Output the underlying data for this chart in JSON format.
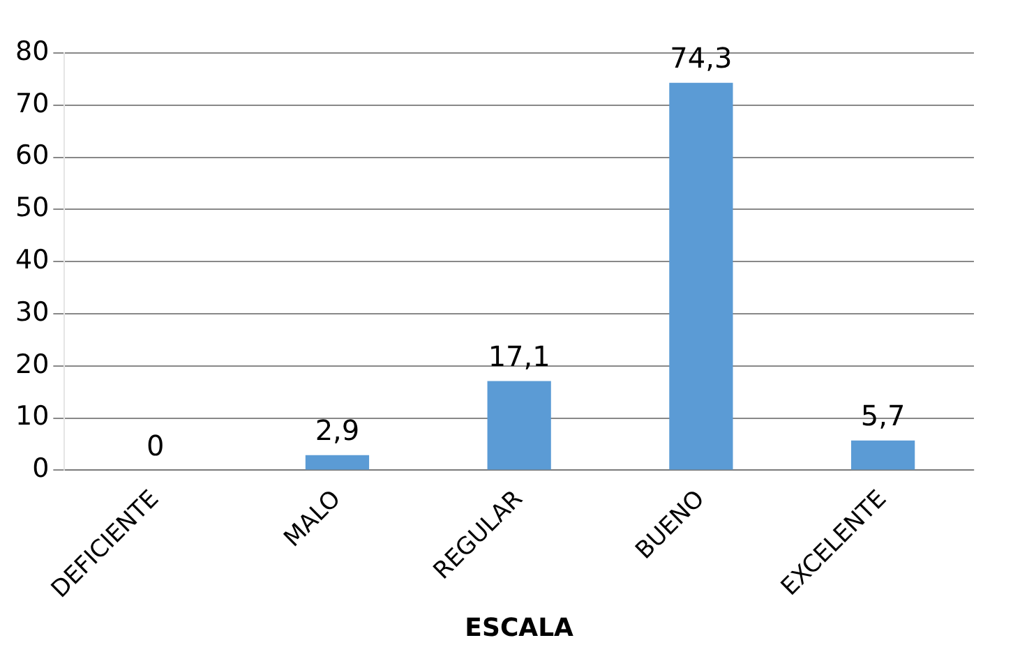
{
  "chart_data": {
    "type": "bar",
    "xlabel": "ESCALA",
    "categories": [
      "DEFICIENTE",
      "MALO",
      "REGULAR",
      "BUENO",
      "EXCELENTE"
    ],
    "values": [
      0,
      2.9,
      17.1,
      74.3,
      5.7
    ],
    "value_labels": [
      "0",
      "2,9",
      "17,1",
      "74,3",
      "5,7"
    ],
    "color": "#5b9bd5",
    "ylim": [
      0,
      80
    ],
    "yticks": [
      0,
      10,
      20,
      30,
      40,
      50,
      60,
      70,
      80
    ],
    "grid": "y"
  }
}
